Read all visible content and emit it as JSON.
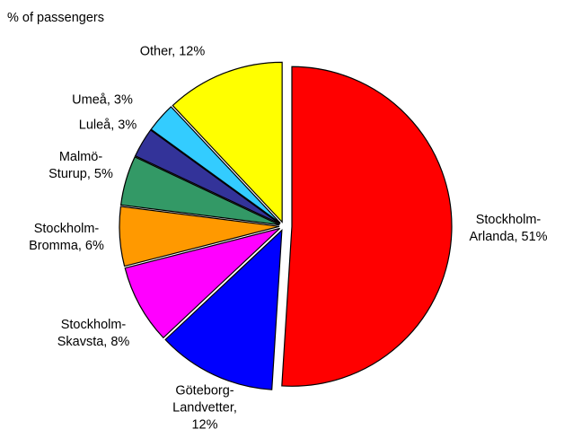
{
  "chart_data": {
    "type": "pie",
    "subtitle": "% of passengers",
    "values": [
      51,
      12,
      8,
      6,
      5,
      3,
      3,
      12
    ],
    "value_labels": [
      "Stockholm-Arlanda, 51%",
      "Göteborg-Landvetter, 12%",
      "Stockholm-Skavsta, 8%",
      "Stockholm-Bromma, 6%",
      "Malmö-Sturup, 5%",
      "Luleå, 3%",
      "Umeå, 3%",
      "Other, 12%"
    ],
    "colors": [
      "#ff0000",
      "#0000ff",
      "#ff00ff",
      "#ff9900",
      "#339966",
      "#333399",
      "#33ccff",
      "#ffff00"
    ]
  }
}
